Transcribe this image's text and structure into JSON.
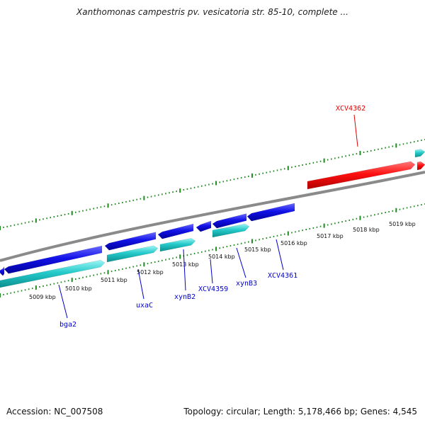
{
  "title": "Xanthomonas campestris pv. vesicatoria str. 85-10, complete ...",
  "footer": {
    "accession": "Accession: NC_007508",
    "summary": "Topology: circular; Length: 5,178,466 bp; Genes: 4,545"
  },
  "colors": {
    "backbone": "#7f7f7f",
    "tick": "#1e8a1e",
    "gene_plus": "#1010e0",
    "gene_minus": "#20c8c8",
    "highlight": "#ff0000",
    "label_default": "#0000cc",
    "label_highlight": "#e00000"
  },
  "scale": {
    "unit": "kbp",
    "labels": [
      "5009 kbp",
      "5010 kbp",
      "5011 kbp",
      "5012 kbp",
      "5013 kbp",
      "5014 kbp",
      "5015 kbp",
      "5016 kbp",
      "5017 kbp",
      "5018 kbp",
      "5019 kbp"
    ]
  },
  "gene_labels": [
    {
      "name": "bga2",
      "highlight": false
    },
    {
      "name": "uxaC",
      "highlight": false
    },
    {
      "name": "xynB2",
      "highlight": false
    },
    {
      "name": "XCV4359",
      "highlight": false
    },
    {
      "name": "xynB3",
      "highlight": false
    },
    {
      "name": "XCV4361",
      "highlight": false
    },
    {
      "name": "XCV4362",
      "highlight": true
    }
  ]
}
